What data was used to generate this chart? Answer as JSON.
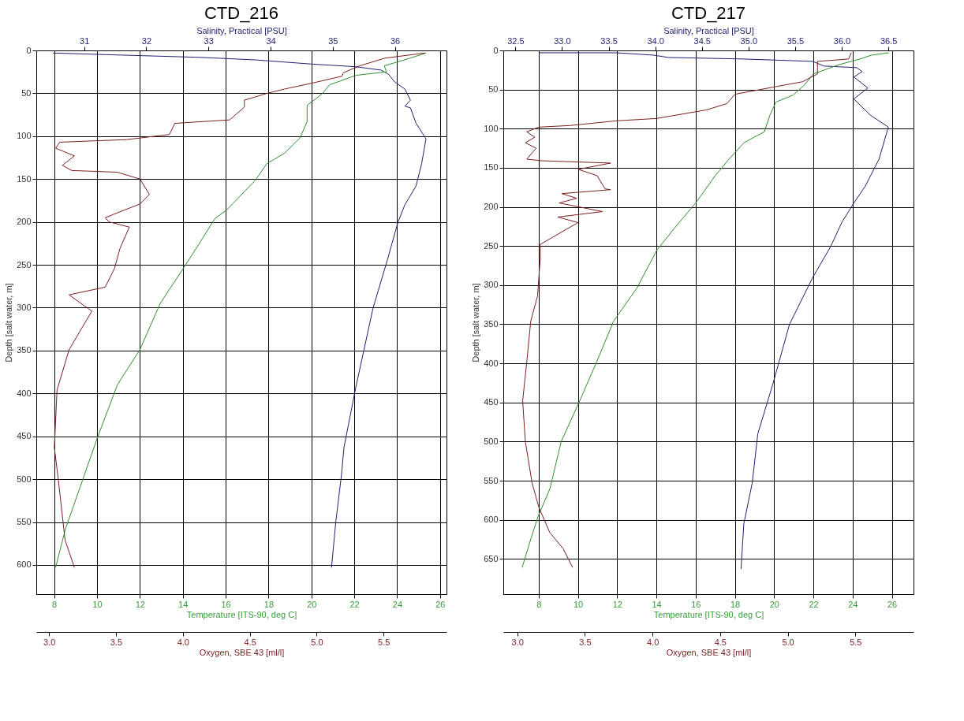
{
  "chart_data": [
    {
      "type": "line",
      "title": "CTD_216",
      "xlabel": "Temperature [ITS-90, deg C]",
      "x2label": "Salinity, Practical [PSU]",
      "ylabel": "Depth [salt water, m]",
      "grid": true,
      "xlim": [
        7.17,
        26.3
      ],
      "xticks": [
        8,
        10,
        12,
        14,
        16,
        18,
        20,
        22,
        24,
        26
      ],
      "x2lim": [
        30.23,
        36.83
      ],
      "x2ticks": [
        31,
        32,
        33,
        34,
        35,
        36
      ],
      "ylim": [
        634,
        0
      ],
      "yticks": [
        0,
        50,
        100,
        150,
        200,
        250,
        300,
        350,
        400,
        450,
        500,
        550,
        600
      ],
      "series": [
        {
          "color": "#1f1f6e",
          "axis": "x2",
          "x": [
            30.5,
            31.4,
            32.83,
            33.75,
            34.68,
            35.37,
            35.78,
            35.9,
            36.0,
            36.16,
            36.25,
            36.16,
            36.25,
            36.34,
            36.5,
            36.43,
            36.34,
            36.16,
            36.05,
            35.88,
            35.65,
            35.37,
            35.18,
            35.14,
            35.05,
            34.98
          ],
          "values": [
            3,
            5,
            8,
            11,
            16,
            19,
            23,
            28,
            37,
            45,
            58,
            65,
            67,
            85,
            103,
            132,
            158,
            180,
            200,
            244,
            300,
            393,
            463,
            495,
            549,
            603
          ]
        },
        {
          "color": "#2f8f2f",
          "x": [
            25.35,
            24.6,
            23.4,
            23.5,
            22.08,
            20.86,
            20.48,
            19.8,
            19.8,
            19.47,
            18.74,
            17.92,
            17.4,
            16.05,
            15.5,
            14.7,
            14.03,
            12.95,
            12.0,
            10.95,
            10.0,
            9.33,
            8.53,
            8.07
          ],
          "values": [
            3,
            9,
            18,
            25,
            29,
            40,
            51,
            64,
            83,
            102,
            120,
            132,
            151,
            186,
            196,
            228,
            254,
            295,
            349,
            390,
            453,
            501,
            558,
            603
          ]
        }
      ]
    },
    {
      "type": "line",
      "xlabel": "Oxygen, SBE 43 [ml/l]",
      "tick_labels": "x",
      "xlim": [
        2.905,
        5.97
      ],
      "xticks": [
        {
          "value": 3,
          "label": "3.0"
        },
        3.5,
        {
          "value": 4,
          "label": "4.0"
        },
        4.5,
        {
          "value": 5,
          "label": "5.0"
        },
        5.5
      ],
      "ylim": [
        634,
        0
      ],
      "series": [
        {
          "color": "#7b1e1e",
          "x": [
            5.81,
            5.51,
            5.32,
            5.2,
            5.19,
            4.97,
            4.76,
            4.63,
            4.46,
            4.46,
            4.35,
            3.94,
            3.9,
            3.58,
            3.08,
            3.05,
            3.19,
            3.1,
            3.17,
            3.51,
            3.68,
            3.75,
            3.68,
            3.42,
            3.45,
            3.6,
            3.53,
            3.49,
            3.42,
            3.15,
            3.32,
            3.15,
            3.06,
            3.04,
            3.07,
            3.12,
            3.19
          ],
          "values": [
            3,
            9,
            18,
            26,
            30,
            38,
            45,
            50,
            58,
            66,
            81,
            85,
            98,
            104,
            107,
            114,
            123,
            134,
            140,
            142,
            150,
            168,
            179,
            195,
            200,
            206,
            231,
            254,
            276,
            285,
            304,
            349,
            396,
            463,
            501,
            571,
            603
          ]
        }
      ]
    },
    {
      "type": "line",
      "title": "CTD_217",
      "xlabel": "Temperature [ITS-90, deg C]",
      "x2label": "Salinity, Practical [PSU]",
      "ylabel": "Depth [salt water, m]",
      "grid": true,
      "xlim": [
        6.2,
        27.1
      ],
      "xticks": [
        8,
        10,
        12,
        14,
        16,
        18,
        20,
        22,
        24,
        26
      ],
      "x2lim": [
        32.37,
        36.77
      ],
      "x2ticks": [
        32.5,
        {
          "value": 33,
          "label": "33.0"
        },
        33.5,
        {
          "value": 34,
          "label": "34.0"
        },
        34.5,
        {
          "value": 35,
          "label": "35.0"
        },
        35.5,
        {
          "value": 36,
          "label": "36.0"
        },
        36.5
      ],
      "ylim": [
        695,
        0
      ],
      "yticks": [
        0,
        50,
        100,
        150,
        200,
        250,
        300,
        350,
        400,
        450,
        500,
        550,
        600,
        650
      ],
      "series": [
        {
          "color": "#1f1f6e",
          "axis": "x2",
          "x": [
            32.75,
            33.58,
            33.98,
            34.14,
            34.95,
            35.69,
            35.81,
            36.16,
            36.22,
            36.13,
            36.28,
            36.13,
            36.31,
            36.5,
            36.4,
            36.25,
            36.13,
            36.0,
            35.88,
            35.69,
            35.44,
            35.26,
            35.1,
            35.04,
            34.95,
            34.92
          ],
          "values": [
            3,
            3,
            6,
            9,
            11,
            14,
            20,
            22,
            27,
            34,
            48,
            62,
            83,
            98,
            139,
            174,
            195,
            220,
            251,
            290,
            350,
            427,
            490,
            553,
            605,
            663
          ]
        },
        {
          "color": "#2f8f2f",
          "x": [
            25.85,
            24.96,
            24.37,
            23.33,
            22.0,
            21.55,
            20.97,
            20.09,
            19.78,
            19.5,
            18.46,
            17.7,
            17.0,
            16.0,
            15.06,
            14.03,
            13.0,
            11.82,
            10.94,
            10.04,
            9.15,
            8.58,
            7.98,
            7.62,
            7.16
          ],
          "values": [
            3,
            6,
            11,
            18,
            30,
            44,
            57,
            66,
            83,
            104,
            118,
            139,
            160,
            195,
            223,
            255,
            304,
            346,
            399,
            451,
            500,
            560,
            595,
            623,
            661
          ]
        }
      ]
    },
    {
      "type": "line",
      "xlabel": "Oxygen, SBE 43 [ml/l]",
      "tick_labels": "x",
      "xlim": [
        2.897,
        5.93
      ],
      "xticks": [
        {
          "value": 3,
          "label": "3.0"
        },
        3.5,
        {
          "value": 4,
          "label": "4.0"
        },
        4.5,
        {
          "value": 5,
          "label": "5.0"
        },
        5.5
      ],
      "ylim": [
        695,
        0
      ],
      "series": [
        {
          "color": "#7b1e1e",
          "x": [
            5.47,
            5.45,
            5.22,
            5.22,
            5.11,
            4.89,
            4.61,
            4.55,
            4.4,
            4.03,
            3.73,
            3.39,
            3.16,
            3.07,
            3.13,
            3.06,
            3.14,
            3.07,
            3.18,
            3.69,
            3.45,
            3.59,
            3.65,
            3.69,
            3.33,
            3.44,
            3.31,
            3.63,
            3.3,
            3.45,
            3.31,
            3.17,
            3.17,
            3.15,
            3.1,
            3.07,
            3.04,
            3.06,
            3.11,
            3.16,
            3.24,
            3.34,
            3.41
          ],
          "values": [
            3,
            11,
            14,
            30,
            40,
            47,
            56,
            68,
            76,
            87,
            90,
            96,
            98,
            104,
            111,
            118,
            125,
            139,
            141,
            144,
            152,
            160,
            177,
            178,
            183,
            189,
            195,
            206,
            213,
            220,
            234,
            248,
            266,
            314,
            346,
            399,
            448,
            500,
            553,
            584,
            616,
            637,
            661
          ]
        }
      ]
    }
  ]
}
